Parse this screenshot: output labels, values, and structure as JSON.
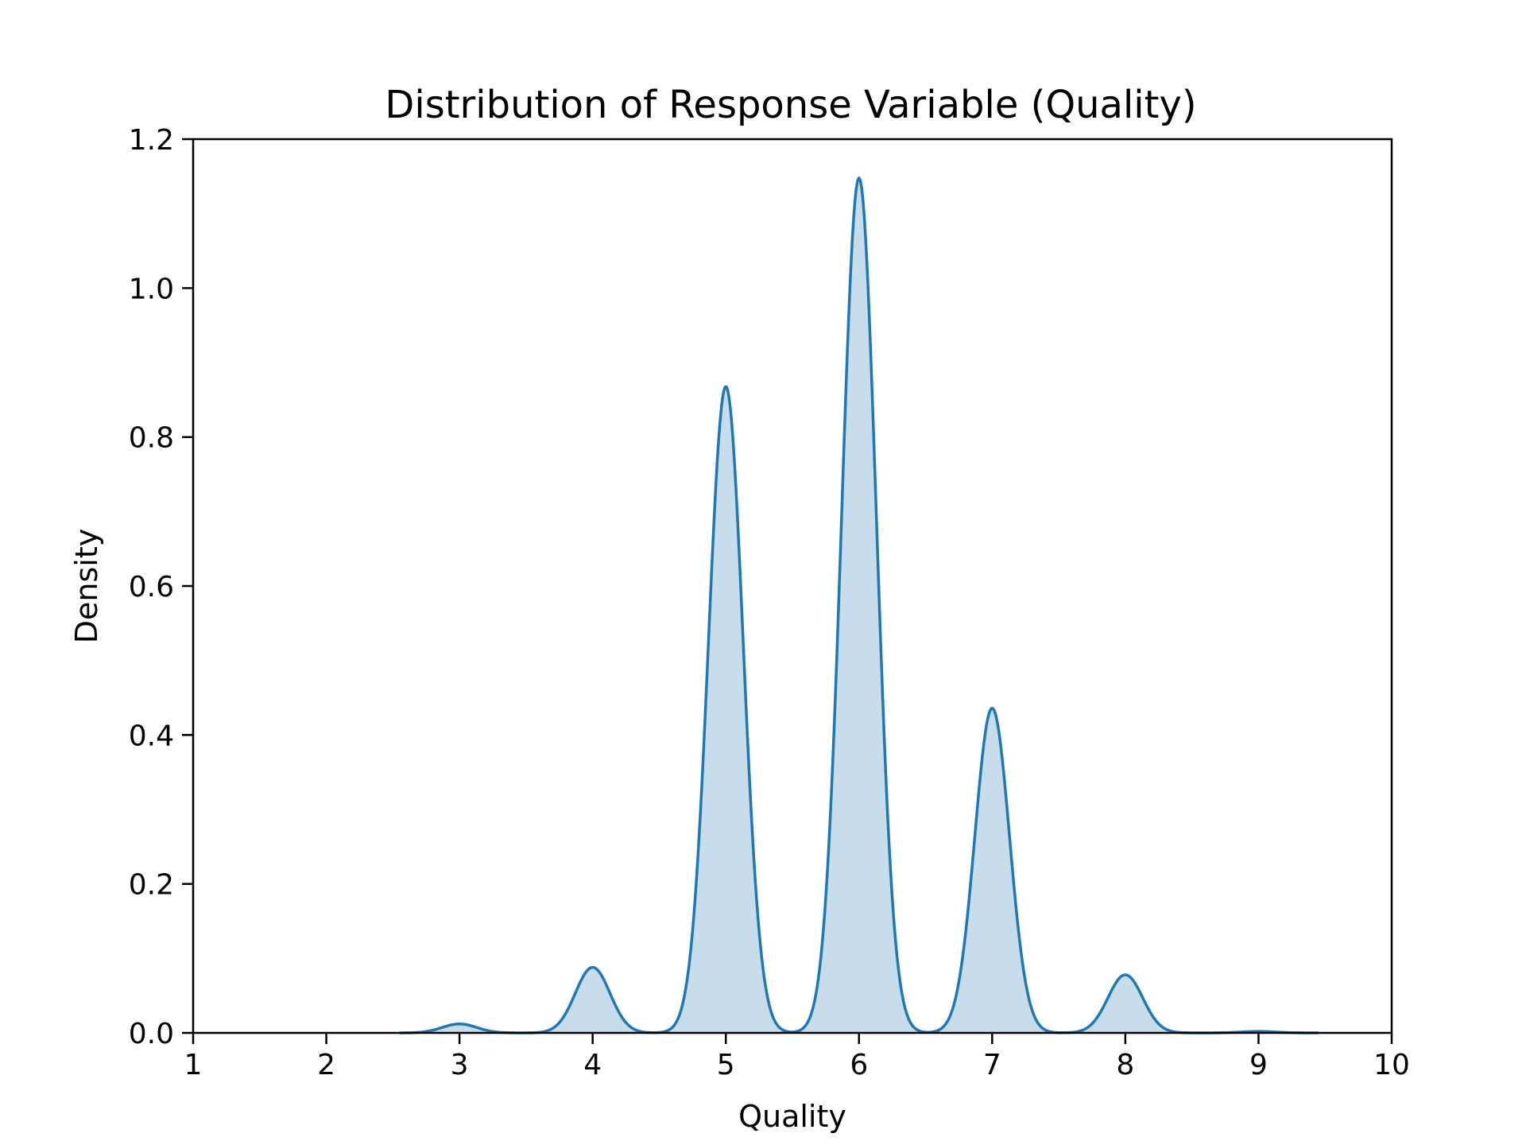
{
  "chart_data": {
    "type": "area",
    "title": "Distribution of Response Variable (Quality)",
    "xlabel": "Quality",
    "ylabel": "Density",
    "xlim": [
      1,
      10
    ],
    "ylim": [
      0,
      1.2
    ],
    "xticks": [
      1,
      2,
      3,
      4,
      5,
      6,
      7,
      8,
      9,
      10
    ],
    "yticks": [
      0.0,
      0.2,
      0.4,
      0.6,
      0.8,
      1.0,
      1.2
    ],
    "grid": false,
    "colors": {
      "line": "#1f77b4",
      "fill": "#1f77b4"
    },
    "series": [
      {
        "peaks": [
          {
            "x": 3.0,
            "y": 0.012
          },
          {
            "x": 4.0,
            "y": 0.088
          },
          {
            "x": 5.0,
            "y": 0.868
          },
          {
            "x": 6.0,
            "y": 1.148
          },
          {
            "x": 7.0,
            "y": 0.436
          },
          {
            "x": 8.0,
            "y": 0.078
          },
          {
            "x": 9.0,
            "y": 0.002
          }
        ],
        "bandwidth": 0.13,
        "x_range": [
          2.55,
          9.45
        ]
      }
    ]
  }
}
